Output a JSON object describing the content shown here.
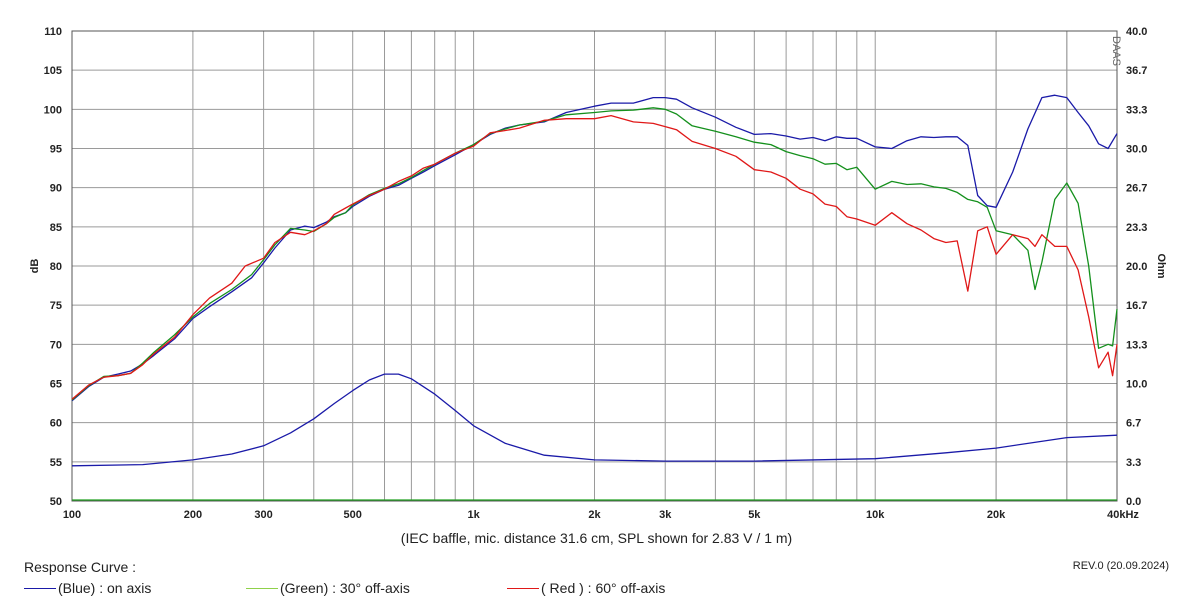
{
  "chart_data": {
    "type": "line",
    "title": "",
    "xlabel": "",
    "ylabel": "dB",
    "y2label": "Ohm",
    "x_scale": "log",
    "xlim": [
      100,
      40000
    ],
    "ylim": [
      50,
      110
    ],
    "y2lim": [
      0.0,
      40.0
    ],
    "grid": true,
    "x_tick_labels": [
      {
        "value": 100,
        "label": "100"
      },
      {
        "value": 200,
        "label": "200"
      },
      {
        "value": 300,
        "label": "300"
      },
      {
        "value": 500,
        "label": "500"
      },
      {
        "value": 1000,
        "label": "1k"
      },
      {
        "value": 2000,
        "label": "2k"
      },
      {
        "value": 3000,
        "label": "3k"
      },
      {
        "value": 5000,
        "label": "5k"
      },
      {
        "value": 10000,
        "label": "10k"
      },
      {
        "value": 20000,
        "label": "20k"
      },
      {
        "value": 40000,
        "label": "40kHz"
      }
    ],
    "y_ticks": [
      50,
      55,
      60,
      65,
      70,
      75,
      80,
      85,
      90,
      95,
      100,
      105,
      110
    ],
    "y2_ticks": [
      "0.0",
      "3.3",
      "6.7",
      "10.0",
      "13.3",
      "16.7",
      "20.0",
      "23.3",
      "26.7",
      "30.0",
      "33.3",
      "36.7",
      "40.0"
    ],
    "series": [
      {
        "name": "(Blue) : on axis",
        "color": "#1a1aa8",
        "points": [
          [
            100,
            62.8
          ],
          [
            110,
            64.6
          ],
          [
            120,
            65.8
          ],
          [
            130,
            66.2
          ],
          [
            140,
            66.6
          ],
          [
            150,
            67.5
          ],
          [
            160,
            68.6
          ],
          [
            180,
            70.7
          ],
          [
            200,
            73.3
          ],
          [
            220,
            74.8
          ],
          [
            250,
            76.7
          ],
          [
            280,
            78.5
          ],
          [
            300,
            80.4
          ],
          [
            320,
            82.3
          ],
          [
            350,
            84.6
          ],
          [
            380,
            85.1
          ],
          [
            400,
            84.9
          ],
          [
            430,
            85.6
          ],
          [
            450,
            86.3
          ],
          [
            480,
            86.8
          ],
          [
            500,
            87.6
          ],
          [
            550,
            88.9
          ],
          [
            600,
            89.8
          ],
          [
            650,
            90.3
          ],
          [
            700,
            91.2
          ],
          [
            750,
            92.0
          ],
          [
            800,
            92.8
          ],
          [
            900,
            94.2
          ],
          [
            1000,
            95.5
          ],
          [
            1100,
            96.8
          ],
          [
            1200,
            97.6
          ],
          [
            1300,
            98.0
          ],
          [
            1500,
            98.4
          ],
          [
            1700,
            99.6
          ],
          [
            2000,
            100.4
          ],
          [
            2200,
            100.8
          ],
          [
            2500,
            100.8
          ],
          [
            2800,
            101.5
          ],
          [
            3000,
            101.5
          ],
          [
            3200,
            101.3
          ],
          [
            3500,
            100.2
          ],
          [
            4000,
            99.0
          ],
          [
            4500,
            97.7
          ],
          [
            5000,
            96.8
          ],
          [
            5500,
            96.9
          ],
          [
            6000,
            96.6
          ],
          [
            6500,
            96.2
          ],
          [
            7000,
            96.4
          ],
          [
            7500,
            96.0
          ],
          [
            8000,
            96.5
          ],
          [
            8500,
            96.3
          ],
          [
            9000,
            96.3
          ],
          [
            10000,
            95.2
          ],
          [
            11000,
            95.0
          ],
          [
            12000,
            96.0
          ],
          [
            13000,
            96.5
          ],
          [
            14000,
            96.4
          ],
          [
            15000,
            96.5
          ],
          [
            16000,
            96.5
          ],
          [
            17000,
            95.4
          ],
          [
            18000,
            89.0
          ],
          [
            19000,
            87.7
          ],
          [
            20000,
            87.5
          ],
          [
            22000,
            92.0
          ],
          [
            24000,
            97.5
          ],
          [
            26000,
            101.5
          ],
          [
            28000,
            101.8
          ],
          [
            30000,
            101.5
          ],
          [
            32000,
            99.6
          ],
          [
            34000,
            97.9
          ],
          [
            36000,
            95.6
          ],
          [
            38000,
            95.0
          ],
          [
            40000,
            96.9
          ]
        ]
      },
      {
        "name": "(Green) : 30° off-axis",
        "color": "#14901c",
        "points": [
          [
            100,
            62.9
          ],
          [
            110,
            64.7
          ],
          [
            120,
            65.9
          ],
          [
            130,
            66.0
          ],
          [
            140,
            66.3
          ],
          [
            150,
            67.6
          ],
          [
            160,
            69.0
          ],
          [
            180,
            71.2
          ],
          [
            200,
            73.5
          ],
          [
            220,
            75.2
          ],
          [
            250,
            77.0
          ],
          [
            280,
            78.9
          ],
          [
            300,
            80.8
          ],
          [
            320,
            82.7
          ],
          [
            350,
            84.8
          ],
          [
            380,
            84.6
          ],
          [
            400,
            84.4
          ],
          [
            430,
            85.4
          ],
          [
            450,
            86.2
          ],
          [
            480,
            86.8
          ],
          [
            500,
            87.8
          ],
          [
            550,
            89.1
          ],
          [
            600,
            89.9
          ],
          [
            650,
            90.5
          ],
          [
            700,
            91.3
          ],
          [
            750,
            92.2
          ],
          [
            800,
            93.0
          ],
          [
            900,
            94.4
          ],
          [
            1000,
            95.5
          ],
          [
            1100,
            96.9
          ],
          [
            1200,
            97.5
          ],
          [
            1300,
            98.0
          ],
          [
            1500,
            98.5
          ],
          [
            1700,
            99.3
          ],
          [
            2000,
            99.6
          ],
          [
            2200,
            99.8
          ],
          [
            2500,
            99.9
          ],
          [
            2800,
            100.2
          ],
          [
            3000,
            100.0
          ],
          [
            3200,
            99.4
          ],
          [
            3500,
            97.9
          ],
          [
            4000,
            97.2
          ],
          [
            4500,
            96.5
          ],
          [
            5000,
            95.8
          ],
          [
            5500,
            95.5
          ],
          [
            6000,
            94.6
          ],
          [
            6500,
            94.1
          ],
          [
            7000,
            93.7
          ],
          [
            7500,
            93.0
          ],
          [
            8000,
            93.1
          ],
          [
            8500,
            92.3
          ],
          [
            9000,
            92.6
          ],
          [
            10000,
            89.8
          ],
          [
            11000,
            90.8
          ],
          [
            12000,
            90.4
          ],
          [
            13000,
            90.5
          ],
          [
            14000,
            90.1
          ],
          [
            15000,
            89.9
          ],
          [
            16000,
            89.4
          ],
          [
            17000,
            88.5
          ],
          [
            18000,
            88.2
          ],
          [
            19000,
            87.5
          ],
          [
            20000,
            84.5
          ],
          [
            22000,
            84.0
          ],
          [
            24000,
            82.0
          ],
          [
            25000,
            77.0
          ],
          [
            26000,
            80.5
          ],
          [
            28000,
            88.5
          ],
          [
            30000,
            90.6
          ],
          [
            32000,
            88.0
          ],
          [
            34000,
            80.0
          ],
          [
            36000,
            69.5
          ],
          [
            38000,
            70.0
          ],
          [
            39000,
            69.8
          ],
          [
            40000,
            74.5
          ]
        ]
      },
      {
        "name": "( Red ) : 60° off-axis",
        "color": "#e01818",
        "points": [
          [
            100,
            63.0
          ],
          [
            110,
            64.8
          ],
          [
            120,
            65.8
          ],
          [
            130,
            66.0
          ],
          [
            140,
            66.3
          ],
          [
            150,
            67.4
          ],
          [
            160,
            68.8
          ],
          [
            180,
            70.9
          ],
          [
            200,
            73.8
          ],
          [
            220,
            75.9
          ],
          [
            250,
            77.8
          ],
          [
            270,
            80.0
          ],
          [
            300,
            81.0
          ],
          [
            320,
            83.0
          ],
          [
            350,
            84.3
          ],
          [
            380,
            84.0
          ],
          [
            400,
            84.5
          ],
          [
            430,
            85.4
          ],
          [
            450,
            86.6
          ],
          [
            480,
            87.4
          ],
          [
            500,
            87.9
          ],
          [
            550,
            89.0
          ],
          [
            600,
            89.8
          ],
          [
            650,
            90.8
          ],
          [
            700,
            91.5
          ],
          [
            750,
            92.5
          ],
          [
            800,
            93.0
          ],
          [
            900,
            94.4
          ],
          [
            1000,
            95.3
          ],
          [
            1100,
            97.0
          ],
          [
            1200,
            97.3
          ],
          [
            1300,
            97.6
          ],
          [
            1500,
            98.6
          ],
          [
            1700,
            98.8
          ],
          [
            2000,
            98.8
          ],
          [
            2200,
            99.2
          ],
          [
            2500,
            98.4
          ],
          [
            2800,
            98.2
          ],
          [
            3000,
            97.8
          ],
          [
            3200,
            97.4
          ],
          [
            3500,
            95.9
          ],
          [
            4000,
            95.0
          ],
          [
            4500,
            94.0
          ],
          [
            5000,
            92.3
          ],
          [
            5500,
            92.0
          ],
          [
            6000,
            91.2
          ],
          [
            6500,
            89.8
          ],
          [
            7000,
            89.2
          ],
          [
            7500,
            87.9
          ],
          [
            8000,
            87.6
          ],
          [
            8500,
            86.3
          ],
          [
            9000,
            86.0
          ],
          [
            10000,
            85.2
          ],
          [
            11000,
            86.8
          ],
          [
            12000,
            85.4
          ],
          [
            13000,
            84.6
          ],
          [
            14000,
            83.5
          ],
          [
            15000,
            83.0
          ],
          [
            16000,
            83.2
          ],
          [
            17000,
            76.8
          ],
          [
            18000,
            84.5
          ],
          [
            19000,
            85.0
          ],
          [
            20000,
            81.5
          ],
          [
            22000,
            84.0
          ],
          [
            24000,
            83.5
          ],
          [
            25000,
            82.5
          ],
          [
            26000,
            84.0
          ],
          [
            28000,
            82.5
          ],
          [
            30000,
            82.5
          ],
          [
            32000,
            79.5
          ],
          [
            34000,
            73.5
          ],
          [
            36000,
            67.0
          ],
          [
            38000,
            69.0
          ],
          [
            39000,
            66.0
          ],
          [
            40000,
            70.0
          ]
        ]
      },
      {
        "name": "Impedance",
        "axis": "y2",
        "color": "#1a1aa8",
        "points": [
          [
            100,
            3.0
          ],
          [
            150,
            3.1
          ],
          [
            200,
            3.5
          ],
          [
            250,
            4.0
          ],
          [
            300,
            4.7
          ],
          [
            350,
            5.8
          ],
          [
            400,
            7.0
          ],
          [
            450,
            8.3
          ],
          [
            500,
            9.4
          ],
          [
            550,
            10.3
          ],
          [
            600,
            10.8
          ],
          [
            650,
            10.8
          ],
          [
            700,
            10.4
          ],
          [
            800,
            9.1
          ],
          [
            900,
            7.7
          ],
          [
            1000,
            6.4
          ],
          [
            1200,
            4.9
          ],
          [
            1500,
            3.9
          ],
          [
            2000,
            3.5
          ],
          [
            3000,
            3.4
          ],
          [
            5000,
            3.4
          ],
          [
            10000,
            3.6
          ],
          [
            15000,
            4.1
          ],
          [
            20000,
            4.5
          ],
          [
            30000,
            5.4
          ],
          [
            40000,
            5.6
          ]
        ]
      }
    ],
    "watermark": "DAAS"
  },
  "caption": "(IEC baffle, mic. distance 31.6 cm, SPL shown for 2.83 V / 1 m)",
  "legend": {
    "title": "Response Curve :",
    "items": [
      {
        "label": "(Blue)  : on axis",
        "color": "#1a1aa8"
      },
      {
        "label": "(Green) : 30° off-axis",
        "color": "#8fd14a"
      },
      {
        "label": "( Red ) : 60° off-axis",
        "color": "#e01818"
      }
    ]
  },
  "revision": "REV.0 (20.09.2024)"
}
